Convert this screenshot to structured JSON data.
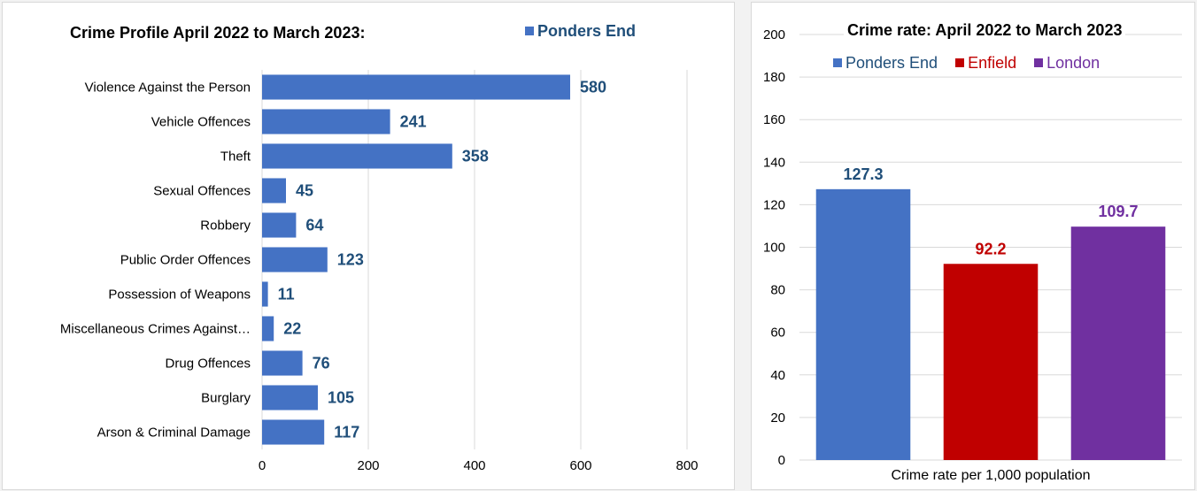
{
  "chart_data": [
    {
      "type": "bar",
      "orientation": "horizontal",
      "title": "Crime Profile April 2022 to March 2023:",
      "categories": [
        "Violence Against the Person",
        "Vehicle Offences",
        "Theft",
        "Sexual Offences",
        "Robbery",
        "Public Order Offences",
        "Possession of Weapons",
        "Miscellaneous Crimes Against…",
        "Drug Offences",
        "Burglary",
        "Arson & Criminal Damage"
      ],
      "series": [
        {
          "name": "Ponders End",
          "values": [
            580,
            241,
            358,
            45,
            64,
            123,
            11,
            22,
            76,
            105,
            117
          ],
          "color": "#4472C4"
        }
      ],
      "xlim": [
        0,
        800
      ],
      "xticks": [
        "0",
        "200",
        "400",
        "600",
        "800"
      ],
      "grid": true,
      "legend": "top-right",
      "label_color": "#1F4E79"
    },
    {
      "type": "bar",
      "title": "Crime rate: April 2022 to March 2023",
      "xlabel": "Crime rate per 1,000 population",
      "series": [
        {
          "name": "Ponders End",
          "values": [
            127.3
          ],
          "color": "#4472C4",
          "label_color": "#1F4E79"
        },
        {
          "name": "Enfield",
          "values": [
            92.2
          ],
          "color": "#C00000",
          "label_color": "#C00000"
        },
        {
          "name": "London",
          "values": [
            109.7
          ],
          "color": "#7030A0",
          "label_color": "#7030A0"
        }
      ],
      "ylim": [
        0,
        200
      ],
      "yticks": [
        "0",
        "20",
        "40",
        "60",
        "80",
        "100",
        "120",
        "140",
        "160",
        "180",
        "200"
      ],
      "grid": true,
      "legend": "top"
    }
  ]
}
